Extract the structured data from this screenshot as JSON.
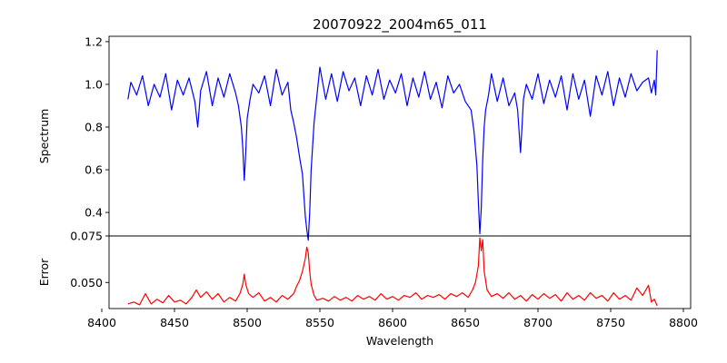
{
  "chart_data": {
    "type": "line",
    "title": "20070922_2004m65_011",
    "xlabel": "Wavelength",
    "xlim": [
      8405,
      8805
    ],
    "xticks": [
      8400,
      8450,
      8500,
      8550,
      8600,
      8650,
      8700,
      8750,
      8800
    ],
    "grid": false,
    "panels": [
      {
        "name": "spectrum",
        "ylabel": "Spectrum",
        "ylim": [
          0.29,
          1.225
        ],
        "yticks": [
          0.4,
          0.6,
          0.8,
          1.0,
          1.2
        ],
        "ytick_labels": [
          "0.4",
          "0.6",
          "0.8",
          "1.0",
          "1.2"
        ],
        "series": [
          {
            "color": "#0000ff",
            "x": [
              8418,
              8420,
              8424,
              8428,
              8432,
              8436,
              8440,
              8444,
              8448,
              8452,
              8456,
              8460,
              8464,
              8466,
              8468,
              8472,
              8476,
              8480,
              8484,
              8488,
              8492,
              8494,
              8496,
              8497,
              8498,
              8499,
              8500,
              8502,
              8504,
              8508,
              8512,
              8516,
              8520,
              8524,
              8528,
              8530,
              8532,
              8534,
              8536,
              8538,
              8539,
              8540,
              8541,
              8542,
              8543,
              8544,
              8546,
              8548,
              8550,
              8554,
              8558,
              8562,
              8566,
              8570,
              8574,
              8578,
              8582,
              8586,
              8590,
              8594,
              8598,
              8602,
              8606,
              8610,
              8614,
              8618,
              8622,
              8626,
              8630,
              8634,
              8638,
              8642,
              8646,
              8650,
              8654,
              8656,
              8658,
              8659,
              8660,
              8661,
              8662,
              8663,
              8664,
              8666,
              8668,
              8672,
              8676,
              8680,
              8684,
              8686,
              8687,
              8688,
              8689,
              8690,
              8692,
              8696,
              8700,
              8704,
              8708,
              8712,
              8716,
              8720,
              8724,
              8728,
              8732,
              8736,
              8740,
              8744,
              8748,
              8752,
              8756,
              8760,
              8764,
              8768,
              8772,
              8776,
              8778,
              8780,
              8781,
              8782
            ],
            "y": [
              0.93,
              1.01,
              0.95,
              1.04,
              0.9,
              1.0,
              0.94,
              1.05,
              0.88,
              1.02,
              0.95,
              1.03,
              0.92,
              0.8,
              0.97,
              1.06,
              0.9,
              1.03,
              0.94,
              1.05,
              0.96,
              0.9,
              0.8,
              0.7,
              0.55,
              0.68,
              0.84,
              0.93,
              1.0,
              0.96,
              1.04,
              0.9,
              1.07,
              0.95,
              1.01,
              0.88,
              0.82,
              0.75,
              0.66,
              0.58,
              0.48,
              0.38,
              0.32,
              0.27,
              0.4,
              0.6,
              0.82,
              0.95,
              1.08,
              0.93,
              1.05,
              0.92,
              1.06,
              0.97,
              1.03,
              0.9,
              1.04,
              0.95,
              1.07,
              0.93,
              1.02,
              0.96,
              1.05,
              0.9,
              1.03,
              0.94,
              1.06,
              0.93,
              1.01,
              0.89,
              1.04,
              0.96,
              1.0,
              0.92,
              0.88,
              0.78,
              0.62,
              0.45,
              0.3,
              0.42,
              0.65,
              0.8,
              0.88,
              0.95,
              1.05,
              0.92,
              1.03,
              0.9,
              0.96,
              0.88,
              0.78,
              0.68,
              0.8,
              0.93,
              1.0,
              0.93,
              1.05,
              0.91,
              1.02,
              0.94,
              1.04,
              0.88,
              1.05,
              0.93,
              1.02,
              0.85,
              1.04,
              0.95,
              1.06,
              0.9,
              1.03,
              0.94,
              1.05,
              0.97,
              1.01,
              1.03,
              0.96,
              1.02,
              0.95,
              1.16
            ]
          }
        ]
      },
      {
        "name": "error",
        "ylabel": "Error",
        "ylim": [
          0.036,
          0.075
        ],
        "yticks": [
          0.05,
          0.075
        ],
        "ytick_labels": [
          "0.050",
          "0.075"
        ],
        "series": [
          {
            "color": "#ff0000",
            "x": [
              8418,
              8422,
              8426,
              8430,
              8434,
              8438,
              8442,
              8446,
              8450,
              8454,
              8458,
              8462,
              8465,
              8468,
              8472,
              8476,
              8480,
              8484,
              8488,
              8492,
              8495,
              8497,
              8498,
              8499,
              8501,
              8504,
              8508,
              8512,
              8516,
              8520,
              8524,
              8528,
              8532,
              8534,
              8536,
              8538,
              8540,
              8541,
              8542,
              8543,
              8544,
              8546,
              8548,
              8552,
              8556,
              8560,
              8564,
              8568,
              8572,
              8576,
              8580,
              8584,
              8588,
              8592,
              8596,
              8600,
              8604,
              8608,
              8612,
              8616,
              8620,
              8624,
              8628,
              8632,
              8636,
              8640,
              8644,
              8648,
              8652,
              8655,
              8657,
              8659,
              8660,
              8661,
              8662,
              8663,
              8665,
              8668,
              8672,
              8676,
              8680,
              8684,
              8688,
              8692,
              8696,
              8700,
              8704,
              8708,
              8712,
              8716,
              8720,
              8724,
              8728,
              8732,
              8736,
              8740,
              8744,
              8748,
              8752,
              8756,
              8760,
              8764,
              8768,
              8772,
              8776,
              8778,
              8780,
              8782
            ],
            "y": [
              0.0385,
              0.0395,
              0.038,
              0.044,
              0.0385,
              0.041,
              0.039,
              0.043,
              0.0395,
              0.0405,
              0.0385,
              0.042,
              0.046,
              0.042,
              0.045,
              0.041,
              0.044,
              0.0395,
              0.042,
              0.04,
              0.044,
              0.049,
              0.0545,
              0.049,
              0.044,
              0.042,
              0.0445,
              0.04,
              0.042,
              0.0395,
              0.043,
              0.041,
              0.044,
              0.048,
              0.051,
              0.056,
              0.063,
              0.069,
              0.066,
              0.056,
              0.049,
              0.043,
              0.0405,
              0.0415,
              0.04,
              0.0425,
              0.0405,
              0.042,
              0.04,
              0.043,
              0.041,
              0.0425,
              0.0405,
              0.044,
              0.041,
              0.0425,
              0.0405,
              0.043,
              0.042,
              0.0445,
              0.041,
              0.043,
              0.042,
              0.0435,
              0.041,
              0.044,
              0.0425,
              0.0445,
              0.042,
              0.046,
              0.05,
              0.059,
              0.074,
              0.067,
              0.073,
              0.056,
              0.046,
              0.0425,
              0.044,
              0.0415,
              0.0445,
              0.041,
              0.043,
              0.04,
              0.0435,
              0.041,
              0.044,
              0.0415,
              0.0435,
              0.04,
              0.0445,
              0.041,
              0.043,
              0.0405,
              0.0445,
              0.0415,
              0.043,
              0.04,
              0.0445,
              0.041,
              0.043,
              0.0405,
              0.047,
              0.043,
              0.0485,
              0.0395,
              0.041,
              0.0375
            ]
          }
        ]
      }
    ]
  }
}
